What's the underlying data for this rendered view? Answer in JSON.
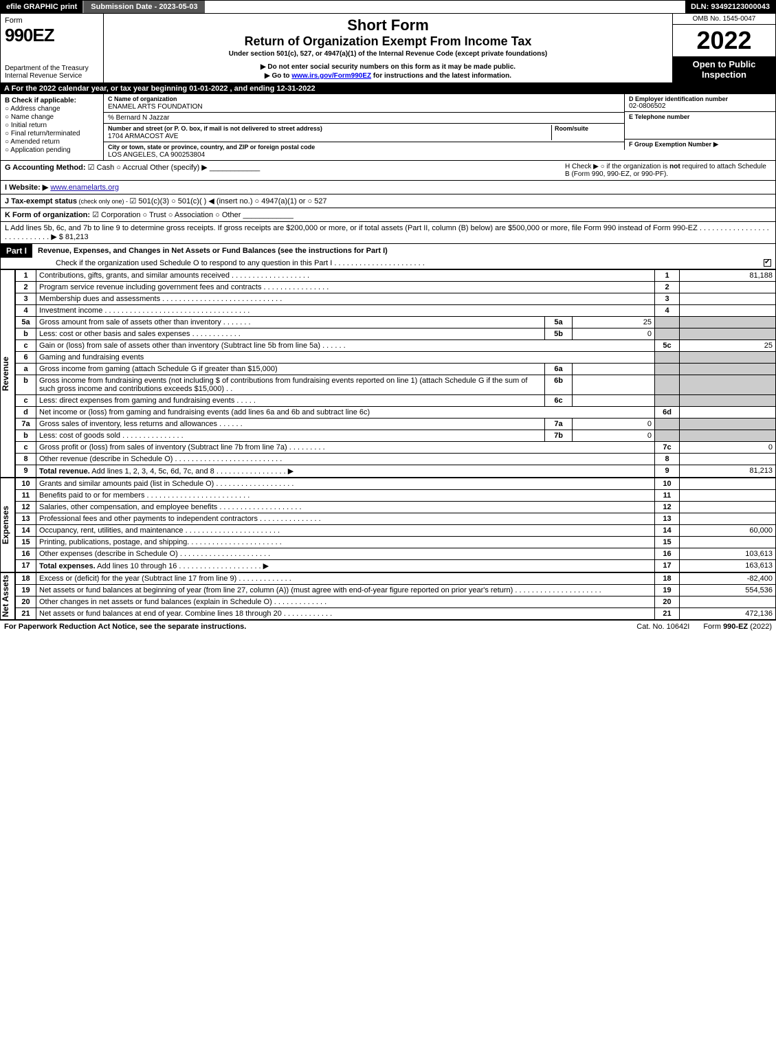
{
  "topbar": {
    "efile": "efile GRAPHIC print",
    "submission": "Submission Date - 2023-05-03",
    "dln": "DLN: 93492123000043"
  },
  "header": {
    "form_label": "Form",
    "form_number": "990EZ",
    "dept": "Department of the Treasury\nInternal Revenue Service",
    "title1": "Short Form",
    "title2": "Return of Organization Exempt From Income Tax",
    "subtitle": "Under section 501(c), 527, or 4947(a)(1) of the Internal Revenue Code (except private foundations)",
    "warn": "▶ Do not enter social security numbers on this form as it may be made public.",
    "goto_pre": "▶ Go to ",
    "goto_link": "www.irs.gov/Form990EZ",
    "goto_post": " for instructions and the latest information.",
    "omb": "OMB No. 1545-0047",
    "year": "2022",
    "open": "Open to Public Inspection"
  },
  "lineA": "A  For the 2022 calendar year, or tax year beginning 01-01-2022 , and ending 12-31-2022",
  "B": {
    "hdr": "B  Check if applicable:",
    "items": [
      "Address change",
      "Name change",
      "Initial return",
      "Final return/terminated",
      "Amended return",
      "Application pending"
    ]
  },
  "C": {
    "name_lbl": "C Name of organization",
    "name": "ENAMEL ARTS FOUNDATION",
    "care": "% Bernard N Jazzar",
    "street_lbl": "Number and street (or P. O. box, if mail is not delivered to street address)",
    "room_lbl": "Room/suite",
    "street": "1704 ARMACOST AVE",
    "city_lbl": "City or town, state or province, country, and ZIP or foreign postal code",
    "city": "LOS ANGELES, CA  900253804"
  },
  "D": {
    "hdr": "D Employer identification number",
    "val": "02-0806502"
  },
  "E": {
    "hdr": "E Telephone number",
    "val": ""
  },
  "F": {
    "hdr": "F Group Exemption Number",
    "arrow": "▶"
  },
  "G": {
    "label": "G Accounting Method:",
    "cash": "Cash",
    "accrual": "Accrual",
    "other": "Other (specify) ▶"
  },
  "H": {
    "text1": "H  Check ▶  ○  if the organization is ",
    "not": "not",
    "text2": " required to attach Schedule B (Form 990, 990-EZ, or 990-PF)."
  },
  "I": {
    "label": "I Website: ▶",
    "val": "www.enamelarts.org"
  },
  "J": {
    "label": "J Tax-exempt status",
    "sub": " (check only one) - ",
    "opts": "☑ 501(c)(3)  ○ 501(c)(  ) ◀ (insert no.)  ○ 4947(a)(1) or  ○ 527"
  },
  "K": {
    "label": "K Form of organization:",
    "opts": "☑ Corporation   ○ Trust   ○ Association   ○ Other"
  },
  "L": {
    "text": "L Add lines 5b, 6c, and 7b to line 9 to determine gross receipts. If gross receipts are $200,000 or more, or if total assets (Part II, column (B) below) are $500,000 or more, file Form 990 instead of Form 990-EZ  .  .  .  .  .  .  .  .  .  .  .  .  .  .  .  .  .  .  .  .  .  .  .  .  .  .  .  .  ▶ $",
    "val": " 81,213"
  },
  "partI": {
    "bar": "Part I",
    "title": "Revenue, Expenses, and Changes in Net Assets or Fund Balances (see the instructions for Part I)",
    "check": "Check if the organization used Schedule O to respond to any question in this Part I  .  .  .  .  .  .  .  .  .  .  .  .  .  .  .  .  .  .  .  .  .  .",
    "checkbox": true
  },
  "sections": {
    "revenue_label": "Revenue",
    "expenses_label": "Expenses",
    "netassets_label": "Net Assets"
  },
  "lines": [
    {
      "n": "1",
      "desc": "Contributions, gifts, grants, and similar amounts received  .  .  .  .  .  .  .  .  .  .  .  .  .  .  .  .  .  .  .",
      "rnum": "1",
      "val": "81,188"
    },
    {
      "n": "2",
      "desc": "Program service revenue including government fees and contracts  .  .  .  .  .  .  .  .  .  .  .  .  .  .  .  .",
      "rnum": "2",
      "val": ""
    },
    {
      "n": "3",
      "desc": "Membership dues and assessments  .  .  .  .  .  .  .  .  .  .  .  .  .  .  .  .  .  .  .  .  .  .  .  .  .  .  .  .  .",
      "rnum": "3",
      "val": ""
    },
    {
      "n": "4",
      "desc": "Investment income  .  .  .  .  .  .  .  .  .  .  .  .  .  .  .  .  .  .  .  .  .  .  .  .  .  .  .  .  .  .  .  .  .  .  .",
      "rnum": "4",
      "val": ""
    },
    {
      "n": "5a",
      "desc": "Gross amount from sale of assets other than inventory  .  .  .  .  .  .  .",
      "inlbl": "5a",
      "inval": "25",
      "shade": true
    },
    {
      "n": "b",
      "desc": "Less: cost or other basis and sales expenses  .  .  .  .  .  .  .  .  .  .  .  .",
      "inlbl": "5b",
      "inval": "0",
      "shade": true
    },
    {
      "n": "c",
      "desc": "Gain or (loss) from sale of assets other than inventory (Subtract line 5b from line 5a)  .  .  .  .  .  .",
      "rnum": "5c",
      "val": "25"
    },
    {
      "n": "6",
      "desc": "Gaming and fundraising events",
      "shade": true
    },
    {
      "n": "a",
      "desc": "Gross income from gaming (attach Schedule G if greater than $15,000)",
      "inlbl": "6a",
      "inval": "",
      "shade": true
    },
    {
      "n": "b",
      "desc": "Gross income from fundraising events (not including $                     of contributions from fundraising events reported on line 1) (attach Schedule G if the sum of such gross income and contributions exceeds $15,000)   .  .",
      "inlbl": "6b",
      "inval": "",
      "shade": true
    },
    {
      "n": "c",
      "desc": "Less: direct expenses from gaming and fundraising events   .  .  .  .  .",
      "inlbl": "6c",
      "inval": "",
      "shade": true
    },
    {
      "n": "d",
      "desc": "Net income or (loss) from gaming and fundraising events (add lines 6a and 6b and subtract line 6c)",
      "rnum": "6d",
      "val": ""
    },
    {
      "n": "7a",
      "desc": "Gross sales of inventory, less returns and allowances  .  .  .  .  .  .",
      "inlbl": "7a",
      "inval": "0",
      "shade": true
    },
    {
      "n": "b",
      "desc": "Less: cost of goods sold          .  .  .  .  .  .  .  .  .  .  .  .  .  .  .",
      "inlbl": "7b",
      "inval": "0",
      "shade": true
    },
    {
      "n": "c",
      "desc": "Gross profit or (loss) from sales of inventory (Subtract line 7b from line 7a)  .  .  .  .  .  .  .  .  .",
      "rnum": "7c",
      "val": "0"
    },
    {
      "n": "8",
      "desc": "Other revenue (describe in Schedule O)  .  .  .  .  .  .  .  .  .  .  .  .  .  .  .  .  .  .  .  .  .  .  .  .  .  .",
      "rnum": "8",
      "val": ""
    },
    {
      "n": "9",
      "desc": "Total revenue. Add lines 1, 2, 3, 4, 5c, 6d, 7c, and 8   .  .  .  .  .  .  .  .  .  .  .  .  .  .  .  .  .          ▶",
      "rnum": "9",
      "val": "81,213",
      "bold": true
    }
  ],
  "expense_lines": [
    {
      "n": "10",
      "desc": "Grants and similar amounts paid (list in Schedule O)  .  .  .  .  .  .  .  .  .  .  .  .  .  .  .  .  .  .  .",
      "rnum": "10",
      "val": ""
    },
    {
      "n": "11",
      "desc": "Benefits paid to or for members        .  .  .  .  .  .  .  .  .  .  .  .  .  .  .  .  .  .  .  .  .  .  .  .  .",
      "rnum": "11",
      "val": ""
    },
    {
      "n": "12",
      "desc": "Salaries, other compensation, and employee benefits  .  .  .  .  .  .  .  .  .  .  .  .  .  .  .  .  .  .  .  .",
      "rnum": "12",
      "val": ""
    },
    {
      "n": "13",
      "desc": "Professional fees and other payments to independent contractors  .  .  .  .  .  .  .  .  .  .  .  .  .  .  .",
      "rnum": "13",
      "val": ""
    },
    {
      "n": "14",
      "desc": "Occupancy, rent, utilities, and maintenance .  .  .  .  .  .  .  .  .  .  .  .  .  .  .  .  .  .  .  .  .  .  .",
      "rnum": "14",
      "val": "60,000"
    },
    {
      "n": "15",
      "desc": "Printing, publications, postage, and shipping.  .  .  .  .  .  .  .  .  .  .  .  .  .  .  .  .  .  .  .  .  .  .",
      "rnum": "15",
      "val": ""
    },
    {
      "n": "16",
      "desc": "Other expenses (describe in Schedule O)      .  .  .  .  .  .  .  .  .  .  .  .  .  .  .  .  .  .  .  .  .  .",
      "rnum": "16",
      "val": "103,613"
    },
    {
      "n": "17",
      "desc": "Total expenses. Add lines 10 through 16      .  .  .  .  .  .  .  .  .  .  .  .  .  .  .  .  .  .  .  .   ▶",
      "rnum": "17",
      "val": "163,613",
      "bold": true
    }
  ],
  "netasset_lines": [
    {
      "n": "18",
      "desc": "Excess or (deficit) for the year (Subtract line 17 from line 9)        .  .  .  .  .  .  .  .  .  .  .  .  .",
      "rnum": "18",
      "val": "-82,400"
    },
    {
      "n": "19",
      "desc": "Net assets or fund balances at beginning of year (from line 27, column (A)) (must agree with end-of-year figure reported on prior year's return) .  .  .  .  .  .  .  .  .  .  .  .  .  .  .  .  .  .  .  .  .",
      "rnum": "19",
      "val": "554,536"
    },
    {
      "n": "20",
      "desc": "Other changes in net assets or fund balances (explain in Schedule O)  .  .  .  .  .  .  .  .  .  .  .  .  .",
      "rnum": "20",
      "val": ""
    },
    {
      "n": "21",
      "desc": "Net assets or fund balances at end of year. Combine lines 18 through 20  .  .  .  .  .  .  .  .  .  .  .  .",
      "rnum": "21",
      "val": "472,136"
    }
  ],
  "footer": {
    "left": "For Paperwork Reduction Act Notice, see the separate instructions.",
    "mid": "Cat. No. 10642I",
    "right_pre": "Form ",
    "right_bold": "990-EZ",
    "right_post": " (2022)"
  }
}
